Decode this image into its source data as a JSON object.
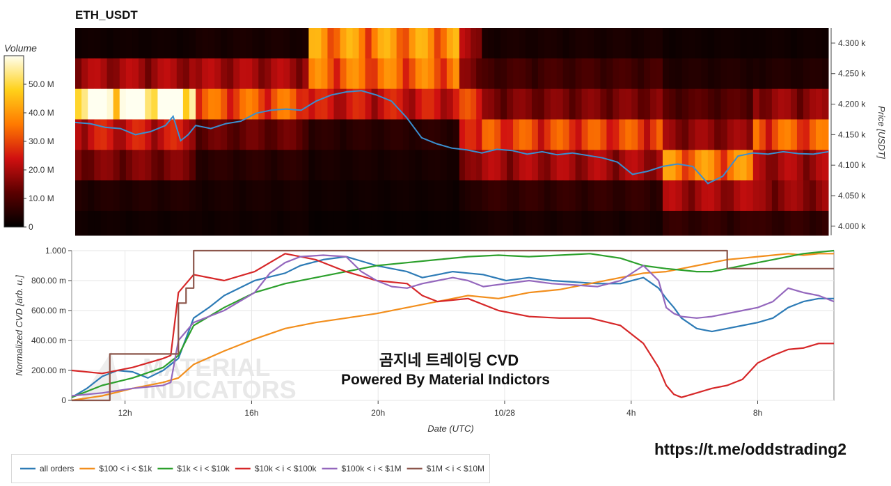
{
  "heatmap_title": "ETH_USDT",
  "watermark": {
    "line1": "곰지네 트레이딩 CVD",
    "line2": "Powered By Material Indictors",
    "logo_text": "MATERIAL INDICATORS"
  },
  "footer_url": "https://t.me/oddstrading2",
  "colors": {
    "blue": "#2d7bb6",
    "orange": "#f28e1c",
    "green": "#2ca02c",
    "red": "#d62728",
    "purple": "#9467bd",
    "brown": "#8c564b"
  },
  "chart_data": [
    {
      "type": "heatmap",
      "title": "ETH_USDT",
      "colorbar": {
        "title": "Volume",
        "ticks": [
          "0",
          "10.0 M",
          "20.0 M",
          "30.0 M",
          "40.0 M",
          "50.0 M"
        ],
        "range": [
          0,
          60
        ]
      },
      "ylabel": "Price [USDT]",
      "y_ticks": [
        "4.000 k",
        "4.050 k",
        "4.100 k",
        "4.150 k",
        "4.200 k",
        "4.250 k",
        "4.300 k"
      ],
      "ylim": [
        3985,
        4325
      ],
      "price_bands": [
        4300,
        4250,
        4200,
        4150,
        4100,
        4050,
        4000
      ],
      "time_segments": [
        {
          "from": 0,
          "to": 16,
          "volumes": [
            2,
            18,
            58,
            22,
            14,
            4,
            2
          ]
        },
        {
          "from": 16,
          "to": 31,
          "volumes": [
            3,
            18,
            30,
            12,
            5,
            3,
            2
          ]
        },
        {
          "from": 31,
          "to": 51,
          "volumes": [
            36,
            32,
            22,
            5,
            3,
            2,
            1
          ]
        },
        {
          "from": 51,
          "to": 54,
          "volumes": [
            18,
            14,
            26,
            22,
            14,
            4,
            2
          ]
        },
        {
          "from": 54,
          "to": 78,
          "volumes": [
            3,
            8,
            14,
            28,
            18,
            6,
            3
          ]
        },
        {
          "from": 78,
          "to": 90,
          "volumes": [
            2,
            4,
            10,
            16,
            34,
            18,
            6
          ]
        },
        {
          "from": 90,
          "to": 100,
          "volumes": [
            2,
            4,
            16,
            30,
            18,
            16,
            6
          ]
        }
      ],
      "price_series": {
        "x": [
          0,
          2,
          4,
          6,
          8,
          10,
          12,
          13,
          14,
          15,
          16,
          18,
          20,
          22,
          24,
          26,
          28,
          30,
          32,
          33,
          34,
          36,
          38,
          40,
          41,
          42,
          44,
          46,
          48,
          50,
          52,
          54,
          56,
          58,
          60,
          62,
          64,
          66,
          68,
          70,
          72,
          74,
          76,
          78,
          80,
          82,
          84,
          86,
          88,
          90,
          92,
          94,
          96,
          98,
          100
        ],
        "y": [
          4170,
          4168,
          4162,
          4160,
          4150,
          4155,
          4165,
          4180,
          4140,
          4150,
          4165,
          4160,
          4168,
          4172,
          4185,
          4190,
          4192,
          4190,
          4205,
          4210,
          4215,
          4220,
          4222,
          4215,
          4210,
          4205,
          4178,
          4145,
          4135,
          4128,
          4125,
          4120,
          4126,
          4124,
          4118,
          4122,
          4117,
          4120,
          4116,
          4112,
          4105,
          4085,
          4090,
          4098,
          4102,
          4098,
          4070,
          4082,
          4115,
          4120,
          4118,
          4122,
          4119,
          4118,
          4122
        ]
      }
    },
    {
      "type": "line",
      "xlabel": "Date (UTC)",
      "ylabel": "Normalized CVD [arb. u.]",
      "x_ticks": [
        "12h",
        "16h",
        "20h",
        "10/28",
        "4h",
        "8h"
      ],
      "y_ticks": [
        "0",
        "200.00 m",
        "400.00 m",
        "600.00 m",
        "800.00 m",
        "1.000"
      ],
      "ylim": [
        0,
        1
      ],
      "series": [
        {
          "name": "all orders",
          "color": "#2d7bb6",
          "x": [
            0,
            2,
            4,
            6,
            8,
            10,
            12,
            14,
            16,
            18,
            20,
            24,
            28,
            30,
            33,
            36,
            38,
            40,
            42,
            44,
            46,
            48,
            50,
            52,
            54,
            57,
            60,
            63,
            66,
            69,
            72,
            75,
            77,
            78,
            79,
            80,
            82,
            84,
            86,
            88,
            90,
            92,
            94,
            96,
            98,
            100
          ],
          "y": [
            0.02,
            0.08,
            0.16,
            0.2,
            0.19,
            0.15,
            0.2,
            0.28,
            0.55,
            0.62,
            0.7,
            0.8,
            0.85,
            0.9,
            0.94,
            0.96,
            0.93,
            0.9,
            0.88,
            0.86,
            0.82,
            0.84,
            0.86,
            0.85,
            0.84,
            0.8,
            0.82,
            0.8,
            0.79,
            0.78,
            0.78,
            0.82,
            0.75,
            0.68,
            0.62,
            0.55,
            0.48,
            0.46,
            0.48,
            0.5,
            0.52,
            0.55,
            0.62,
            0.66,
            0.68,
            0.68
          ]
        },
        {
          "name": "$100 < i < $1k",
          "color": "#f28e1c",
          "x": [
            0,
            4,
            8,
            12,
            14,
            16,
            20,
            24,
            28,
            32,
            36,
            40,
            44,
            48,
            52,
            56,
            60,
            64,
            68,
            72,
            75,
            78,
            80,
            82,
            84,
            86,
            88,
            90,
            92,
            94,
            96,
            98,
            100
          ],
          "y": [
            0.0,
            0.03,
            0.08,
            0.12,
            0.15,
            0.24,
            0.33,
            0.41,
            0.48,
            0.52,
            0.55,
            0.58,
            0.62,
            0.66,
            0.7,
            0.68,
            0.72,
            0.74,
            0.78,
            0.82,
            0.85,
            0.86,
            0.88,
            0.9,
            0.92,
            0.94,
            0.95,
            0.96,
            0.97,
            0.98,
            0.97,
            0.98,
            0.98
          ]
        },
        {
          "name": "$1k < i < $10k",
          "color": "#2ca02c",
          "x": [
            0,
            4,
            8,
            12,
            14,
            16,
            20,
            24,
            28,
            32,
            36,
            40,
            44,
            48,
            52,
            56,
            60,
            64,
            68,
            72,
            75,
            78,
            80,
            82,
            84,
            86,
            88,
            90,
            92,
            94,
            96,
            98,
            100
          ],
          "y": [
            0.02,
            0.1,
            0.15,
            0.22,
            0.3,
            0.5,
            0.62,
            0.72,
            0.78,
            0.82,
            0.86,
            0.9,
            0.92,
            0.94,
            0.96,
            0.97,
            0.96,
            0.97,
            0.98,
            0.95,
            0.9,
            0.88,
            0.87,
            0.86,
            0.86,
            0.88,
            0.9,
            0.92,
            0.94,
            0.96,
            0.98,
            0.99,
            1.0
          ]
        },
        {
          "name": "$10k < i < $100k",
          "color": "#d62728",
          "x": [
            0,
            4,
            8,
            12,
            13,
            14,
            16,
            20,
            24,
            26,
            28,
            30,
            32,
            34,
            36,
            40,
            44,
            46,
            48,
            52,
            56,
            60,
            64,
            68,
            72,
            75,
            77,
            78,
            79,
            80,
            82,
            84,
            86,
            88,
            90,
            92,
            94,
            96,
            98,
            100
          ],
          "y": [
            0.2,
            0.18,
            0.22,
            0.28,
            0.3,
            0.72,
            0.84,
            0.8,
            0.86,
            0.92,
            0.98,
            0.96,
            0.94,
            0.9,
            0.86,
            0.8,
            0.78,
            0.7,
            0.66,
            0.68,
            0.6,
            0.56,
            0.55,
            0.55,
            0.5,
            0.38,
            0.22,
            0.1,
            0.04,
            0.02,
            0.05,
            0.08,
            0.1,
            0.14,
            0.25,
            0.3,
            0.34,
            0.35,
            0.38,
            0.38
          ]
        },
        {
          "name": "$100k < i < $1M",
          "color": "#9467bd",
          "x": [
            0,
            4,
            8,
            12,
            13,
            14,
            16,
            20,
            24,
            26,
            28,
            30,
            33,
            36,
            38,
            40,
            42,
            44,
            46,
            48,
            50,
            52,
            54,
            57,
            60,
            63,
            66,
            69,
            72,
            75,
            77,
            78,
            79,
            80,
            82,
            84,
            86,
            88,
            90,
            92,
            94,
            96,
            98,
            100
          ],
          "y": [
            0.03,
            0.05,
            0.08,
            0.1,
            0.12,
            0.4,
            0.52,
            0.6,
            0.72,
            0.85,
            0.92,
            0.96,
            0.97,
            0.96,
            0.86,
            0.8,
            0.76,
            0.75,
            0.78,
            0.8,
            0.82,
            0.8,
            0.76,
            0.78,
            0.8,
            0.78,
            0.77,
            0.76,
            0.8,
            0.9,
            0.8,
            0.62,
            0.58,
            0.56,
            0.55,
            0.56,
            0.58,
            0.6,
            0.62,
            0.66,
            0.75,
            0.72,
            0.7,
            0.66
          ]
        },
        {
          "name": "$1M < i < $10M",
          "color": "#8c564b",
          "x": [
            0,
            4,
            5,
            9,
            10,
            12,
            13,
            14,
            15,
            16,
            17,
            20,
            50,
            84,
            85,
            86,
            100
          ],
          "y": [
            0.0,
            0.0,
            0.31,
            0.31,
            0.31,
            0.31,
            0.31,
            0.65,
            0.75,
            1.0,
            1.0,
            1.0,
            1.0,
            1.0,
            1.0,
            0.88,
            0.88
          ]
        }
      ]
    }
  ]
}
